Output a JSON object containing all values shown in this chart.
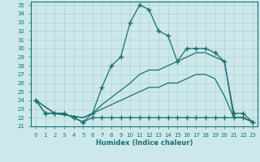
{
  "xlabel": "Humidex (Indice chaleur)",
  "bg_color": "#cce8ea",
  "line_color": "#1a7070",
  "grid_color": "#b0d0d4",
  "xlim": [
    -0.5,
    23.5
  ],
  "ylim": [
    21,
    35.4
  ],
  "xticks": [
    0,
    1,
    2,
    3,
    4,
    5,
    6,
    7,
    8,
    9,
    10,
    11,
    12,
    13,
    14,
    15,
    16,
    17,
    18,
    19,
    20,
    21,
    22,
    23
  ],
  "yticks": [
    21,
    22,
    23,
    24,
    25,
    26,
    27,
    28,
    29,
    30,
    31,
    32,
    33,
    34,
    35
  ],
  "lines": [
    {
      "x": [
        0,
        1,
        2,
        3,
        4,
        5,
        6,
        7,
        8,
        9,
        10,
        11,
        12,
        13,
        14,
        15,
        16,
        17,
        18,
        19,
        20,
        21,
        22,
        23
      ],
      "y": [
        24,
        22.5,
        22.5,
        22.5,
        22,
        21.5,
        22.5,
        25.5,
        28,
        29,
        33,
        35,
        34.5,
        32,
        31.5,
        28.5,
        30,
        30,
        30,
        29.5,
        28.5,
        22.5,
        22.5,
        21.5
      ],
      "marker": "+",
      "linestyle": "-",
      "markersize": 4
    },
    {
      "x": [
        0,
        2,
        5,
        6,
        7,
        10,
        11,
        12,
        13,
        14,
        15,
        16,
        17,
        18,
        19,
        20,
        21,
        22,
        23
      ],
      "y": [
        24,
        22.5,
        22,
        22.5,
        23.5,
        26,
        27,
        27.5,
        27.5,
        28,
        28.5,
        29,
        29.5,
        29.5,
        29,
        28.5,
        22,
        22,
        21.5
      ],
      "marker": null,
      "linestyle": "-",
      "markersize": 0
    },
    {
      "x": [
        0,
        2,
        5,
        6,
        7,
        10,
        11,
        12,
        13,
        14,
        15,
        16,
        17,
        18,
        19,
        20,
        21,
        22,
        23
      ],
      "y": [
        24,
        22.5,
        22,
        22.5,
        23,
        24.5,
        25,
        25.5,
        25.5,
        26,
        26,
        26.5,
        27,
        27,
        26.5,
        24.5,
        22,
        22,
        21.5
      ],
      "marker": null,
      "linestyle": "-",
      "markersize": 0
    },
    {
      "x": [
        0,
        1,
        2,
        3,
        4,
        5,
        6,
        7,
        8,
        9,
        10,
        11,
        12,
        13,
        14,
        15,
        16,
        17,
        18,
        19,
        20,
        21,
        22,
        23
      ],
      "y": [
        24,
        22.5,
        22.5,
        22.5,
        22,
        21.5,
        22,
        22,
        22,
        22,
        22,
        22,
        22,
        22,
        22,
        22,
        22,
        22,
        22,
        22,
        22,
        22,
        22,
        21.5
      ],
      "marker": "+",
      "linestyle": "-",
      "markersize": 4
    }
  ]
}
